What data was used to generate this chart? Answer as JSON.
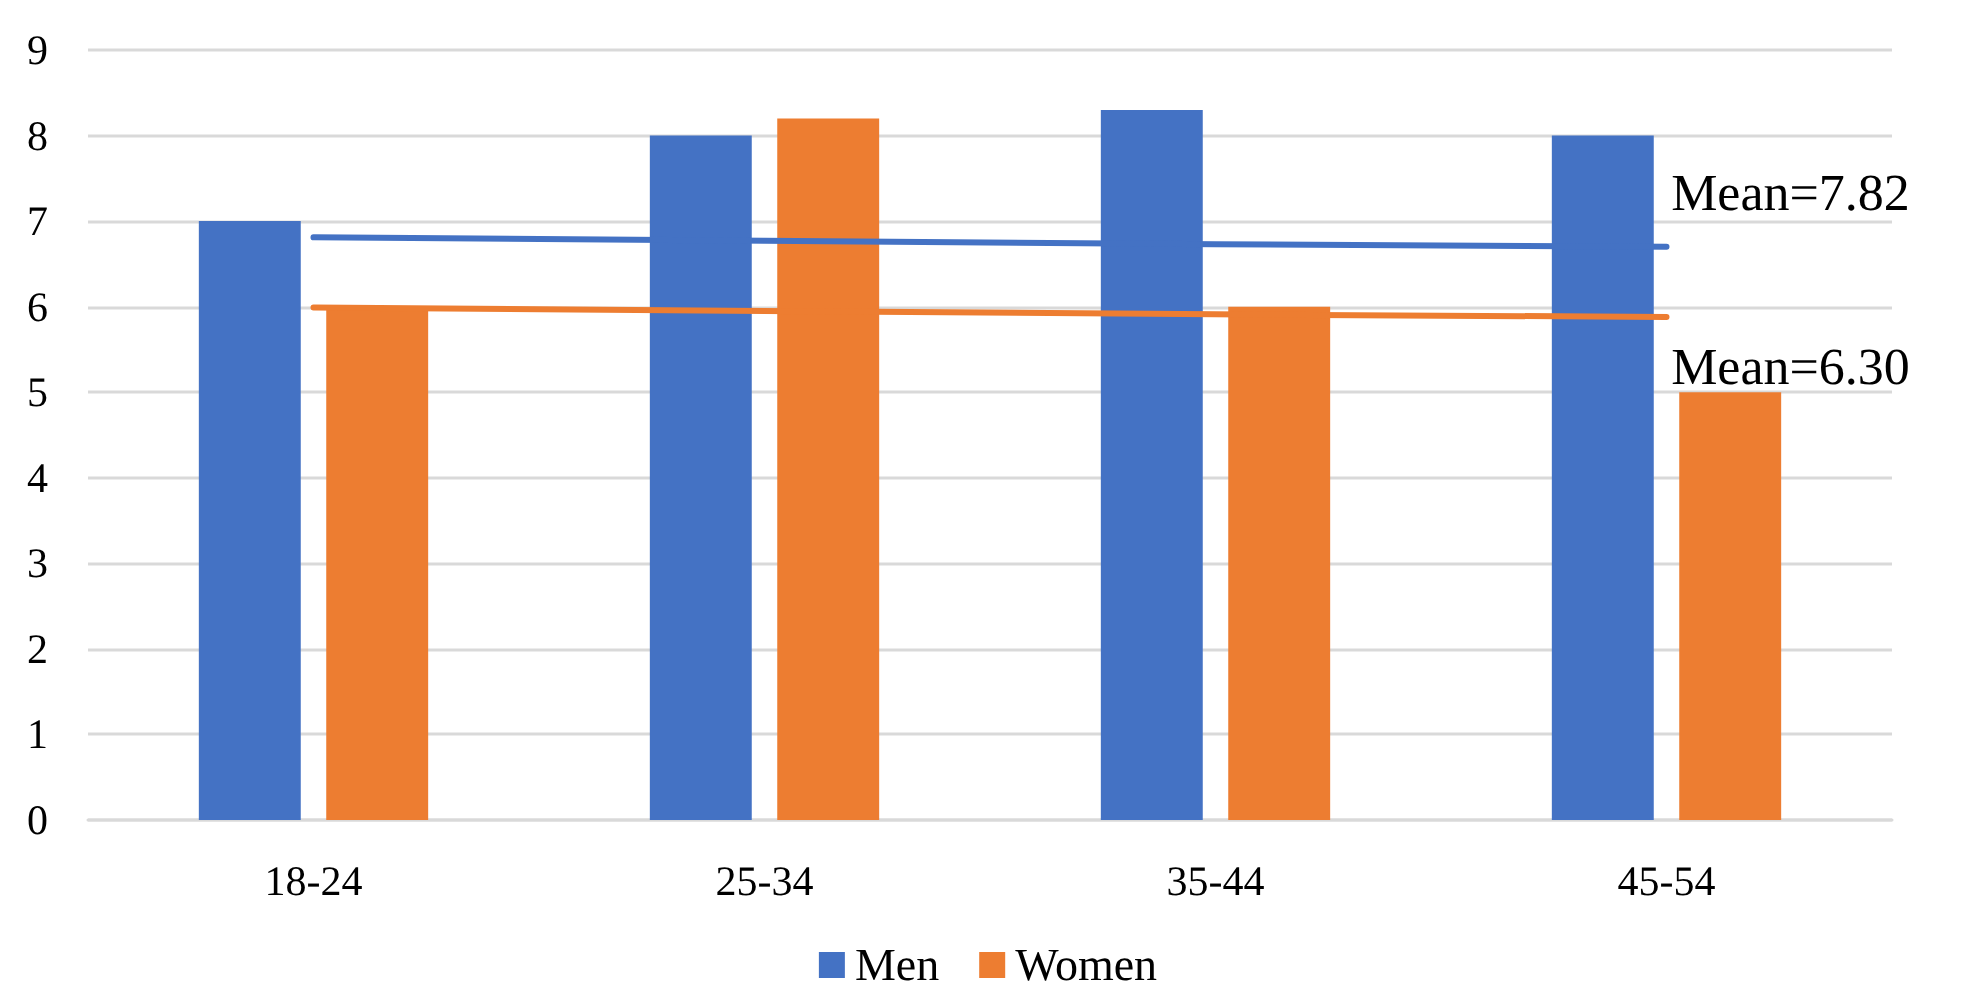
{
  "chart_data": {
    "type": "bar",
    "categories": [
      "18-24",
      "25-34",
      "35-44",
      "45-54"
    ],
    "series": [
      {
        "name": "Men",
        "color": "#4472c4",
        "values": [
          7,
          8,
          8.3,
          8
        ]
      },
      {
        "name": "Women",
        "color": "#ed7d31",
        "values": [
          6,
          8.2,
          6,
          5
        ]
      },
      {
        "type": "line",
        "name": "Mean=7.82",
        "color": "#4472c4",
        "values": [
          6.81,
          6.77,
          6.73,
          6.7
        ]
      },
      {
        "type": "line",
        "name": "Mean=6.30",
        "color": "#ed7d31",
        "values": [
          5.99,
          5.95,
          5.91,
          5.88
        ]
      }
    ],
    "ylim": [
      0,
      9
    ],
    "yticks": [
      0,
      1,
      2,
      3,
      4,
      5,
      6,
      7,
      8,
      9
    ],
    "grid": "y",
    "legend": "bottom"
  }
}
